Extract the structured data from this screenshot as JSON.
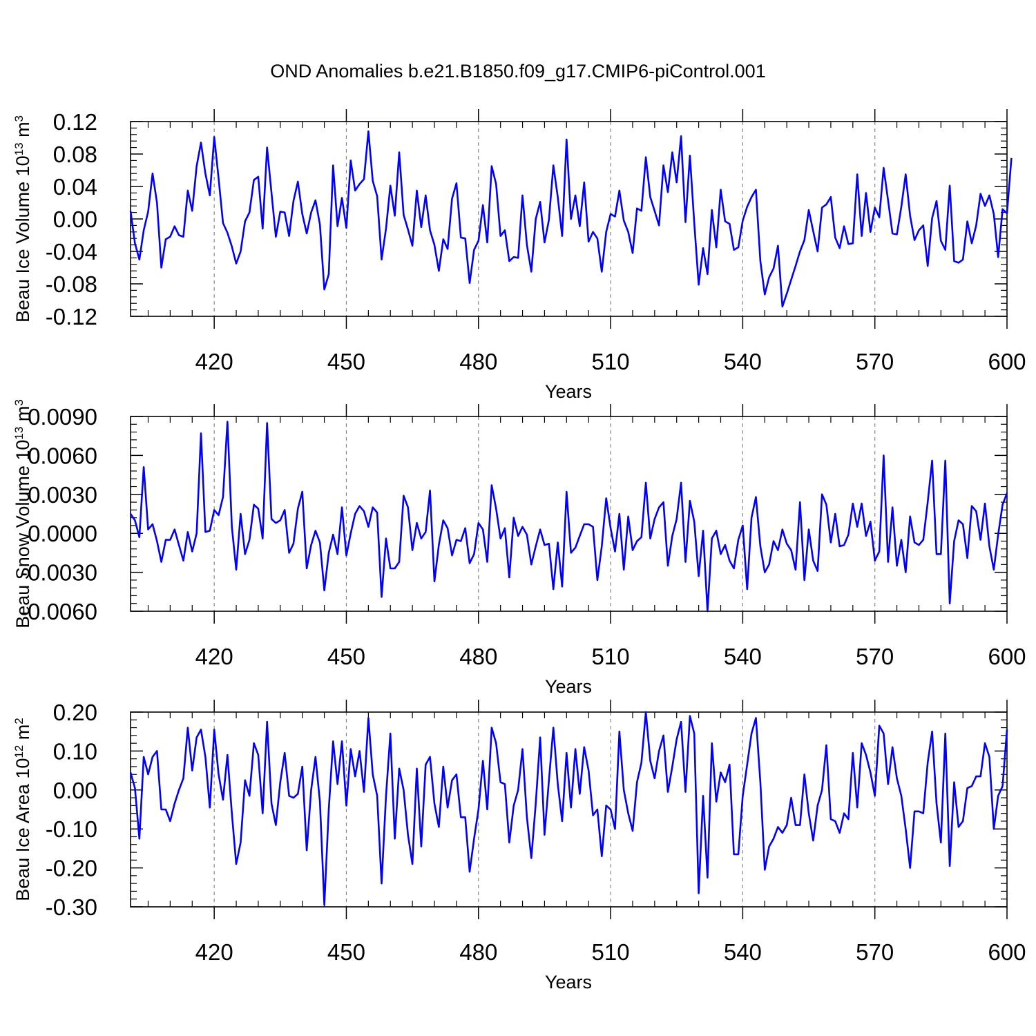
{
  "title": "OND Anomalies b.e21.B1850.f09_g17.CMIP6-piControl.001",
  "chart_data": [
    {
      "type": "line",
      "id": "ice-volume",
      "ylabel": "Beau Ice Volume 10",
      "ylabel_exp": "13",
      "ylabel_unit": " m",
      "ylabel_unit_exp": "3",
      "xlabel": "Years",
      "xlim": [
        401,
        600
      ],
      "ylim": [
        -0.12,
        0.12
      ],
      "xticks": [
        420,
        450,
        480,
        510,
        540,
        570,
        600
      ],
      "xtick_labels": [
        "420",
        "450",
        "480",
        "510",
        "540",
        "570",
        "600"
      ],
      "yticks": [
        -0.12,
        -0.08,
        -0.04,
        0.0,
        0.04,
        0.08,
        0.12
      ],
      "ytick_labels": [
        "-0.12",
        "-0.08",
        "-0.04",
        "0.00",
        "0.04",
        "0.08",
        "0.12"
      ],
      "grid": "vertical dashed at labeled years",
      "color": "#0000ff",
      "series": [
        {
          "name": "Beau Ice Volume",
          "x_start": 401,
          "values": [
            0.01,
            -0.03,
            -0.05,
            -0.014,
            0.009,
            0.056,
            0.02,
            -0.06,
            -0.025,
            -0.022,
            -0.009,
            -0.02,
            -0.022,
            0.035,
            0.01,
            0.065,
            0.094,
            0.056,
            0.029,
            0.101,
            0.05,
            -0.005,
            -0.017,
            -0.034,
            -0.055,
            -0.04,
            -0.003,
            0.008,
            0.048,
            0.052,
            -0.012,
            0.088,
            0.032,
            -0.022,
            0.009,
            0.008,
            -0.021,
            0.022,
            0.046,
            0.006,
            -0.018,
            0.008,
            0.023,
            -0.007,
            -0.087,
            -0.068,
            0.066,
            -0.009,
            0.026,
            -0.011,
            0.072,
            0.035,
            0.043,
            0.049,
            0.108,
            0.047,
            0.028,
            -0.05,
            -0.012,
            0.041,
            0.004,
            0.082,
            0.005,
            -0.013,
            -0.033,
            0.035,
            -0.01,
            0.029,
            -0.014,
            -0.032,
            -0.064,
            -0.025,
            -0.037,
            0.025,
            0.044,
            -0.023,
            -0.024,
            -0.079,
            -0.038,
            -0.027,
            0.017,
            -0.029,
            0.065,
            0.043,
            -0.021,
            -0.014,
            -0.052,
            -0.047,
            -0.048,
            0.029,
            -0.032,
            -0.065,
            0.0,
            0.021,
            -0.029,
            -0.001,
            0.066,
            0.027,
            -0.021,
            0.098,
            0.0,
            0.029,
            -0.009,
            0.045,
            -0.028,
            -0.016,
            -0.024,
            -0.065,
            -0.016,
            0.006,
            0.003,
            0.035,
            -0.002,
            -0.016,
            -0.042,
            0.013,
            0.01,
            0.076,
            0.027,
            0.01,
            -0.008,
            0.066,
            0.033,
            0.082,
            0.045,
            0.102,
            -0.004,
            0.078,
            -0.005,
            -0.081,
            -0.036,
            -0.068,
            0.011,
            -0.035,
            0.036,
            -0.003,
            -0.006,
            -0.038,
            -0.035,
            -0.002,
            0.015,
            0.027,
            0.036,
            -0.052,
            -0.093,
            -0.072,
            -0.061,
            -0.033,
            -0.108,
            -0.092,
            -0.075,
            -0.058,
            -0.04,
            -0.026,
            0.011,
            -0.015,
            -0.04,
            0.014,
            0.018,
            0.027,
            -0.023,
            -0.036,
            -0.009,
            -0.031,
            -0.03,
            0.055,
            -0.021,
            0.032,
            -0.016,
            0.014,
            0.002,
            0.063,
            0.023,
            -0.018,
            -0.019,
            0.015,
            0.055,
            0.004,
            -0.026,
            -0.014,
            -0.008,
            -0.058,
            0.001,
            0.022,
            -0.027,
            -0.038,
            0.041,
            -0.052,
            -0.054,
            -0.05,
            -0.003,
            -0.03,
            -0.008,
            0.031,
            0.016,
            0.029,
            0.006,
            -0.047,
            0.012,
            0.007,
            0.075
          ]
        }
      ]
    },
    {
      "type": "line",
      "id": "snow-volume",
      "ylabel": "Beau Snow Volume 10",
      "ylabel_exp": "13",
      "ylabel_unit": " m",
      "ylabel_unit_exp": "3",
      "xlabel": "Years",
      "xlim": [
        401,
        600
      ],
      "ylim": [
        -0.006,
        0.009
      ],
      "xticks": [
        420,
        450,
        480,
        510,
        540,
        570,
        600
      ],
      "xtick_labels": [
        "420",
        "450",
        "480",
        "510",
        "540",
        "570",
        "600"
      ],
      "yticks": [
        -0.006,
        -0.003,
        0.0,
        0.003,
        0.006,
        0.009
      ],
      "ytick_labels": [
        "-0.0060",
        "-0.0030",
        "0.0000",
        "0.0030",
        "0.0060",
        "0.0090"
      ],
      "grid": "vertical dashed at labeled years",
      "color": "#0000ff",
      "series": [
        {
          "name": "Beau Snow Volume",
          "x_start": 401,
          "values": [
            0.0015,
            0.001,
            -0.0003,
            0.0051,
            0.0003,
            0.0007,
            -0.0006,
            -0.0022,
            -0.0005,
            -0.0005,
            0.0003,
            -0.0009,
            -0.0021,
            0.0001,
            -0.0014,
            0.0,
            0.0077,
            0.0001,
            0.0002,
            0.0018,
            0.0014,
            0.0028,
            0.0086,
            0.0005,
            -0.0028,
            0.0015,
            -0.0016,
            -0.0005,
            0.0022,
            0.0019,
            -0.0004,
            0.0085,
            0.0011,
            0.0008,
            0.001,
            0.0018,
            -0.0015,
            -0.0008,
            0.0019,
            0.0032,
            -0.0027,
            -0.0009,
            0.0002,
            -0.0007,
            -0.0044,
            -0.0015,
            -0.0001,
            -0.0016,
            0.002,
            -0.0017,
            0.0,
            0.0015,
            0.0021,
            0.0017,
            0.0005,
            0.002,
            0.0016,
            -0.0049,
            -0.0004,
            -0.0027,
            -0.0027,
            -0.0022,
            0.0029,
            0.002,
            -0.0013,
            0.0008,
            -0.0004,
            0.0001,
            0.0033,
            -0.0037,
            -0.0009,
            0.001,
            0.0004,
            -0.0017,
            -0.0005,
            -0.0006,
            0.0004,
            -0.0023,
            -0.0016,
            0.0008,
            0.0003,
            -0.0022,
            0.0037,
            0.0019,
            -0.0004,
            0.0004,
            -0.0034,
            0.0012,
            -0.0002,
            0.0005,
            -0.0001,
            -0.0024,
            -0.001,
            0.0003,
            -0.0009,
            -0.0008,
            -0.0043,
            -0.0007,
            -0.0041,
            0.0032,
            -0.0015,
            -0.0011,
            -0.0002,
            0.0007,
            0.0007,
            0.0005,
            -0.0036,
            -0.001,
            0.0027,
            0.0004,
            -0.0014,
            0.0015,
            -0.0028,
            0.0013,
            -0.0013,
            -0.0006,
            -0.0003,
            0.0039,
            -0.0004,
            0.0011,
            0.002,
            0.0024,
            -0.0025,
            -0.0002,
            0.0011,
            0.0039,
            -0.0022,
            0.0025,
            0.0009,
            -0.0033,
            0.0002,
            -0.006,
            -0.0004,
            0.0002,
            -0.0016,
            -0.0009,
            -0.0021,
            -0.0027,
            -0.0005,
            0.0006,
            -0.0043,
            0.0012,
            0.0028,
            -0.001,
            -0.003,
            -0.0024,
            -0.0006,
            -0.0013,
            0.0003,
            -0.0008,
            -0.0013,
            -0.0028,
            0.0024,
            -0.0036,
            0.0003,
            -0.0021,
            -0.0029,
            0.003,
            0.0022,
            -0.0007,
            0.0015,
            -0.001,
            -0.0009,
            -0.0001,
            0.0023,
            0.0005,
            0.0023,
            -0.0002,
            0.0009,
            -0.0021,
            -0.0014,
            0.006,
            -0.0022,
            0.002,
            -0.0025,
            -0.0005,
            -0.003,
            0.0013,
            -0.0007,
            -0.0009,
            -0.0005,
            0.0024,
            0.0056,
            -0.0016,
            -0.0016,
            0.0056,
            -0.0054,
            -0.0006,
            0.001,
            0.0007,
            -0.0019,
            0.0021,
            0.0017,
            -0.0005,
            0.0023,
            -0.001,
            -0.0028,
            -0.0001,
            0.0022,
            0.0031
          ]
        }
      ]
    },
    {
      "type": "line",
      "id": "ice-area",
      "ylabel": "Beau Ice Area 10",
      "ylabel_exp": "12",
      "ylabel_unit": " m",
      "ylabel_unit_exp": "2",
      "xlabel": "Years",
      "xlim": [
        401,
        600
      ],
      "ylim": [
        -0.3,
        0.2
      ],
      "xticks": [
        420,
        450,
        480,
        510,
        540,
        570,
        600
      ],
      "xtick_labels": [
        "420",
        "450",
        "480",
        "510",
        "540",
        "570",
        "600"
      ],
      "yticks": [
        -0.3,
        -0.2,
        -0.1,
        0.0,
        0.1,
        0.2
      ],
      "ytick_labels": [
        "-0.30",
        "-0.20",
        "-0.10",
        "0.00",
        "0.10",
        "0.20"
      ],
      "grid": "vertical dashed at labeled years",
      "color": "#0000ff",
      "series": [
        {
          "name": "Beau Ice Area",
          "x_start": 401,
          "values": [
            0.045,
            0.005,
            -0.125,
            0.085,
            0.04,
            0.085,
            0.1,
            -0.05,
            -0.05,
            -0.08,
            -0.035,
            0.0,
            0.03,
            0.16,
            0.05,
            0.135,
            0.155,
            0.085,
            -0.045,
            0.155,
            0.04,
            -0.025,
            0.09,
            -0.06,
            -0.19,
            -0.135,
            0.025,
            -0.015,
            0.12,
            0.09,
            -0.06,
            0.175,
            -0.035,
            -0.09,
            0.02,
            0.095,
            -0.015,
            -0.02,
            -0.01,
            0.06,
            -0.155,
            0.0,
            0.085,
            -0.03,
            -0.295,
            -0.05,
            0.125,
            0.015,
            0.125,
            -0.04,
            0.105,
            0.035,
            0.1,
            -0.005,
            0.185,
            0.04,
            -0.015,
            -0.24,
            -0.015,
            0.145,
            -0.125,
            0.055,
            0.0,
            -0.115,
            -0.19,
            0.055,
            -0.145,
            0.065,
            0.085,
            -0.035,
            -0.095,
            0.06,
            -0.045,
            0.025,
            0.04,
            -0.07,
            -0.07,
            -0.21,
            -0.125,
            -0.05,
            0.075,
            -0.05,
            0.16,
            0.12,
            0.02,
            0.015,
            -0.135,
            -0.04,
            0.0,
            0.105,
            -0.07,
            -0.175,
            -0.035,
            0.135,
            -0.115,
            0.025,
            0.16,
            0.015,
            -0.08,
            0.095,
            -0.045,
            0.105,
            -0.01,
            0.11,
            0.05,
            -0.065,
            -0.05,
            -0.17,
            -0.04,
            -0.05,
            -0.1,
            0.15,
            0.0,
            -0.06,
            -0.105,
            0.02,
            0.07,
            0.2,
            0.075,
            0.03,
            0.1,
            0.14,
            -0.005,
            0.06,
            0.13,
            0.175,
            -0.005,
            0.19,
            0.145,
            -0.265,
            -0.015,
            -0.225,
            0.12,
            -0.03,
            0.045,
            0.02,
            0.065,
            -0.165,
            -0.165,
            -0.015,
            0.065,
            0.145,
            0.185,
            0.02,
            -0.205,
            -0.145,
            -0.125,
            -0.095,
            -0.11,
            -0.09,
            -0.02,
            -0.09,
            -0.09,
            0.04,
            -0.06,
            -0.13,
            -0.04,
            0.0,
            0.115,
            -0.075,
            -0.08,
            -0.11,
            -0.06,
            -0.075,
            0.095,
            -0.045,
            0.12,
            0.09,
            0.045,
            -0.015,
            0.165,
            0.145,
            0.015,
            0.11,
            0.03,
            -0.015,
            -0.1,
            -0.2,
            -0.055,
            -0.055,
            -0.06,
            0.07,
            0.15,
            -0.035,
            -0.135,
            0.145,
            -0.195,
            0.02,
            -0.095,
            -0.08,
            0.005,
            0.01,
            0.035,
            0.035,
            0.12,
            0.085,
            -0.1,
            -0.015,
            0.01,
            0.155
          ]
        }
      ]
    }
  ]
}
